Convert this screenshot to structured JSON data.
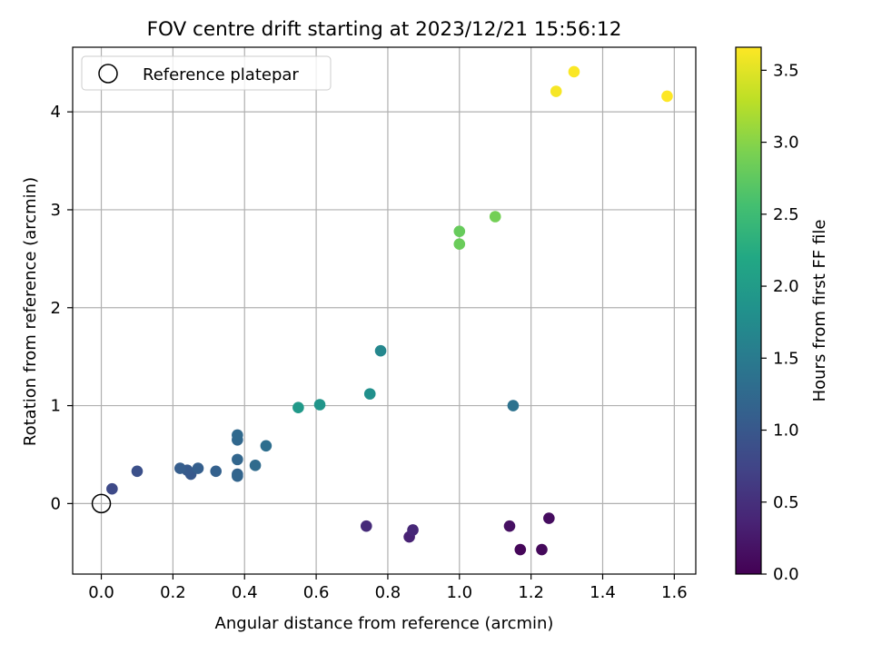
{
  "chart_data": {
    "type": "scatter",
    "title": "FOV centre drift starting at 2023/12/21 15:56:12",
    "xlabel": "Angular distance from reference (arcmin)",
    "ylabel": "Rotation from reference (arcmin)",
    "xlim": [
      -0.08,
      1.66
    ],
    "ylim": [
      -0.72,
      4.66
    ],
    "xticks": [
      "0.0",
      "0.2",
      "0.4",
      "0.6",
      "0.8",
      "1.0",
      "1.2",
      "1.4",
      "1.6"
    ],
    "yticks": [
      "0",
      "1",
      "2",
      "3",
      "4"
    ],
    "grid": true,
    "legend": {
      "placement": "top-left",
      "entries": [
        "Reference platepar"
      ]
    },
    "reference_point": {
      "x": 0.0,
      "y": 0.0,
      "label": "Reference platepar"
    },
    "colorbar": {
      "label": "Hours from first FF file",
      "min": 0.0,
      "max": 3.66,
      "colormap": "viridis",
      "ticks": [
        "0.0",
        "0.5",
        "1.0",
        "1.5",
        "2.0",
        "2.5",
        "3.0",
        "3.5"
      ]
    },
    "points": [
      {
        "x": 1.17,
        "y": -0.47,
        "hours": 0.05
      },
      {
        "x": 1.23,
        "y": -0.47,
        "hours": 0.08
      },
      {
        "x": 1.25,
        "y": -0.15,
        "hours": 0.12
      },
      {
        "x": 1.14,
        "y": -0.23,
        "hours": 0.16
      },
      {
        "x": 0.86,
        "y": -0.34,
        "hours": 0.35
      },
      {
        "x": 0.87,
        "y": -0.27,
        "hours": 0.4
      },
      {
        "x": 0.74,
        "y": -0.23,
        "hours": 0.45
      },
      {
        "x": 0.03,
        "y": 0.15,
        "hours": 0.82
      },
      {
        "x": 0.1,
        "y": 0.33,
        "hours": 0.9
      },
      {
        "x": 0.25,
        "y": 0.3,
        "hours": 1.0
      },
      {
        "x": 0.24,
        "y": 0.34,
        "hours": 1.03
      },
      {
        "x": 0.22,
        "y": 0.36,
        "hours": 1.08
      },
      {
        "x": 0.27,
        "y": 0.36,
        "hours": 1.1
      },
      {
        "x": 0.32,
        "y": 0.33,
        "hours": 1.12
      },
      {
        "x": 0.38,
        "y": 0.3,
        "hours": 1.15
      },
      {
        "x": 0.38,
        "y": 0.28,
        "hours": 1.18
      },
      {
        "x": 0.38,
        "y": 0.45,
        "hours": 1.2
      },
      {
        "x": 0.38,
        "y": 0.65,
        "hours": 1.22
      },
      {
        "x": 0.38,
        "y": 0.7,
        "hours": 1.25
      },
      {
        "x": 0.43,
        "y": 0.39,
        "hours": 1.28
      },
      {
        "x": 0.46,
        "y": 0.59,
        "hours": 1.32
      },
      {
        "x": 1.15,
        "y": 1.0,
        "hours": 1.38
      },
      {
        "x": 0.78,
        "y": 1.56,
        "hours": 1.68
      },
      {
        "x": 0.75,
        "y": 1.12,
        "hours": 1.82
      },
      {
        "x": 0.61,
        "y": 1.01,
        "hours": 1.9
      },
      {
        "x": 0.55,
        "y": 0.98,
        "hours": 1.95
      },
      {
        "x": 1.0,
        "y": 2.78,
        "hours": 2.8
      },
      {
        "x": 1.0,
        "y": 2.65,
        "hours": 2.82
      },
      {
        "x": 1.1,
        "y": 2.93,
        "hours": 2.88
      },
      {
        "x": 1.27,
        "y": 4.21,
        "hours": 3.62
      },
      {
        "x": 1.32,
        "y": 4.41,
        "hours": 3.64
      },
      {
        "x": 1.58,
        "y": 4.16,
        "hours": 3.66
      }
    ]
  }
}
